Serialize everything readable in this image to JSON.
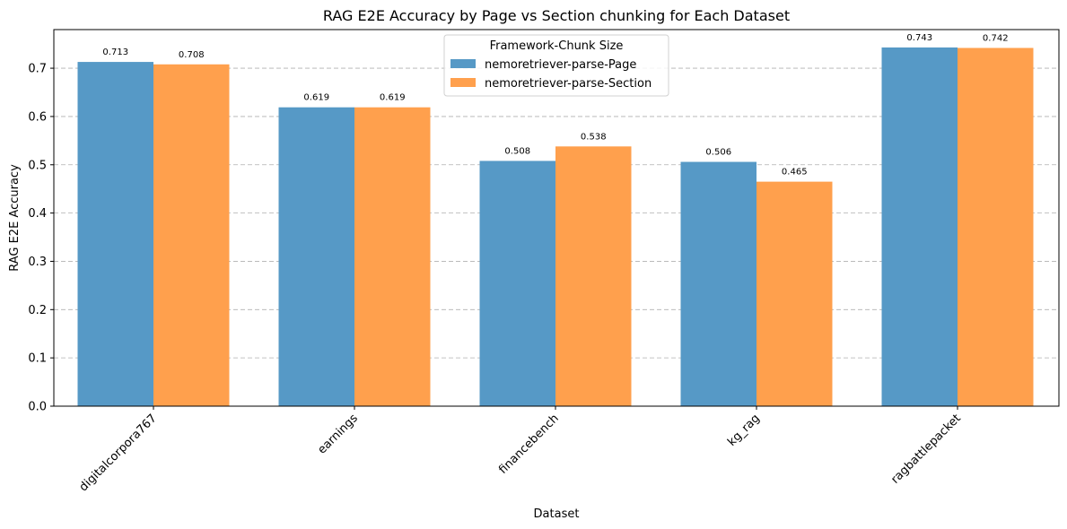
{
  "chart_data": {
    "type": "bar",
    "title": "RAG E2E Accuracy by Page vs Section chunking for Each Dataset",
    "xlabel": "Dataset",
    "ylabel": "RAG E2E Accuracy",
    "categories": [
      "digitalcorpora767",
      "earnings",
      "financebench",
      "kg_rag",
      "ragbattlepacket"
    ],
    "series": [
      {
        "name": "nemoretriever-parse-Page",
        "color": "#5699c6",
        "values": [
          0.713,
          0.619,
          0.508,
          0.506,
          0.743
        ],
        "labels": [
          "0.713",
          "0.619",
          "0.508",
          "0.506",
          "0.743"
        ]
      },
      {
        "name": "nemoretriever-parse-Section",
        "color": "#ffa04d",
        "values": [
          0.708,
          0.619,
          0.538,
          0.465,
          0.742
        ],
        "labels": [
          "0.708",
          "0.619",
          "0.538",
          "0.465",
          "0.742"
        ]
      }
    ],
    "ylim": [
      0,
      0.78
    ],
    "yticks": [
      "0.0",
      "0.1",
      "0.2",
      "0.3",
      "0.4",
      "0.5",
      "0.6",
      "0.7"
    ],
    "grid": "y-dashed",
    "legend": {
      "title": "Framework-Chunk Size",
      "placement": "top-center"
    }
  }
}
